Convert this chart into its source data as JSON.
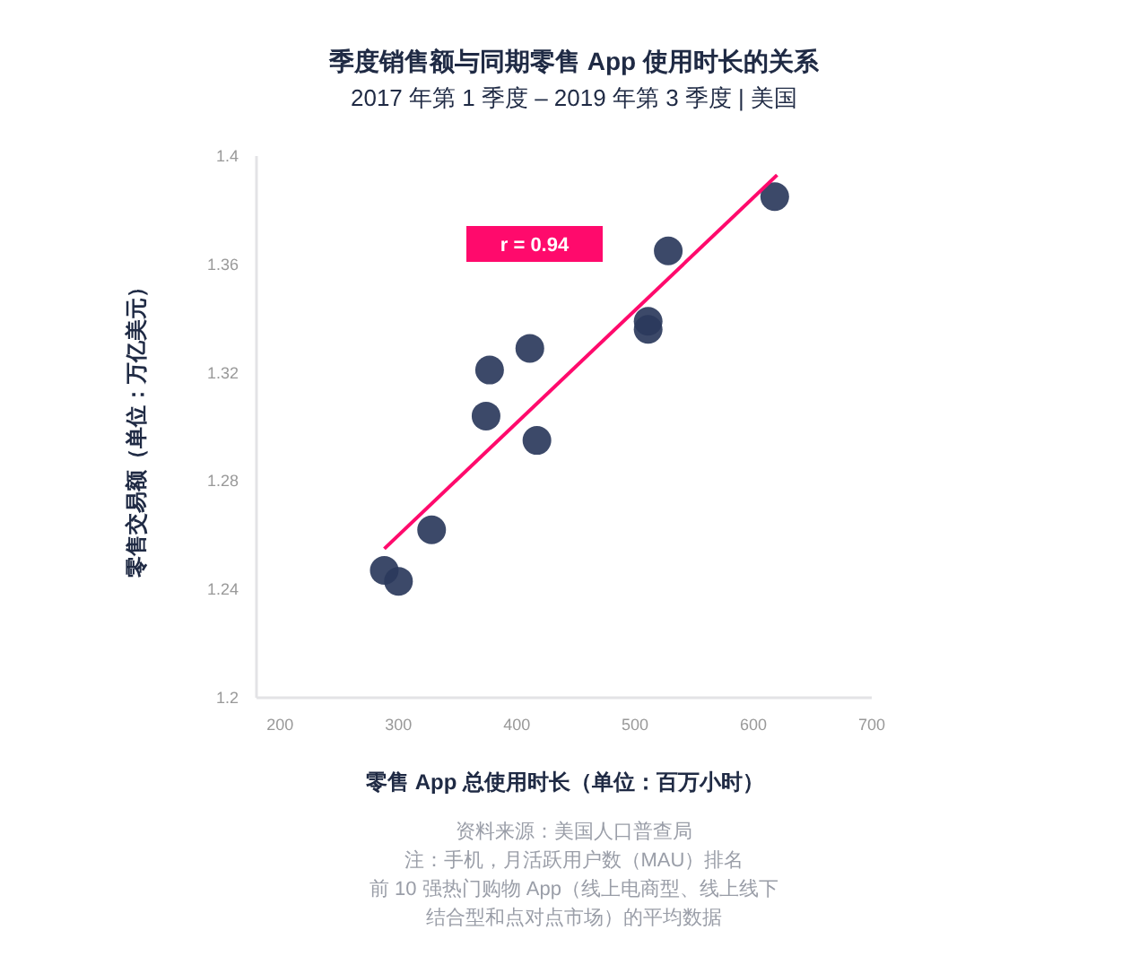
{
  "chart_data": {
    "type": "scatter",
    "title": "季度销售额与同期零售 App 使用时长的关系",
    "subtitle": "2017 年第 1 季度 – 2019 年第 3 季度 | 美国",
    "xlabel": "零售 App 总使用时长（单位：百万小时）",
    "ylabel": "零售交易额（单位：万亿美元）",
    "series": [
      {
        "color": "#2b3a5c",
        "x": [
          288,
          300,
          328,
          374,
          377,
          411,
          417,
          511,
          511,
          528,
          618
        ],
        "values": [
          1.247,
          1.243,
          1.262,
          1.304,
          1.321,
          1.329,
          1.295,
          1.339,
          1.336,
          1.365,
          1.385
        ]
      },
      {
        "type": "line",
        "marker": "none",
        "color": "#ff0a6c",
        "x": [
          288,
          620
        ],
        "values": [
          1.255,
          1.393
        ]
      }
    ],
    "xlim": [
      180,
      700
    ],
    "ylim": [
      1.2,
      1.4
    ],
    "xticks": [
      200,
      300,
      400,
      500,
      600,
      700
    ],
    "yticks": [
      1.2,
      1.24,
      1.28,
      1.32,
      1.36,
      1.4
    ],
    "grid": false,
    "marker": "circle",
    "annotations": [
      "r = 0.94",
      "资料来源：美国人口普查局",
      "注：手机，月活跃用户数（MAU）排名",
      "前 10 强热门购物 App（线上电商型、线上线下",
      "结合型和点对点市场）的平均数据"
    ]
  }
}
